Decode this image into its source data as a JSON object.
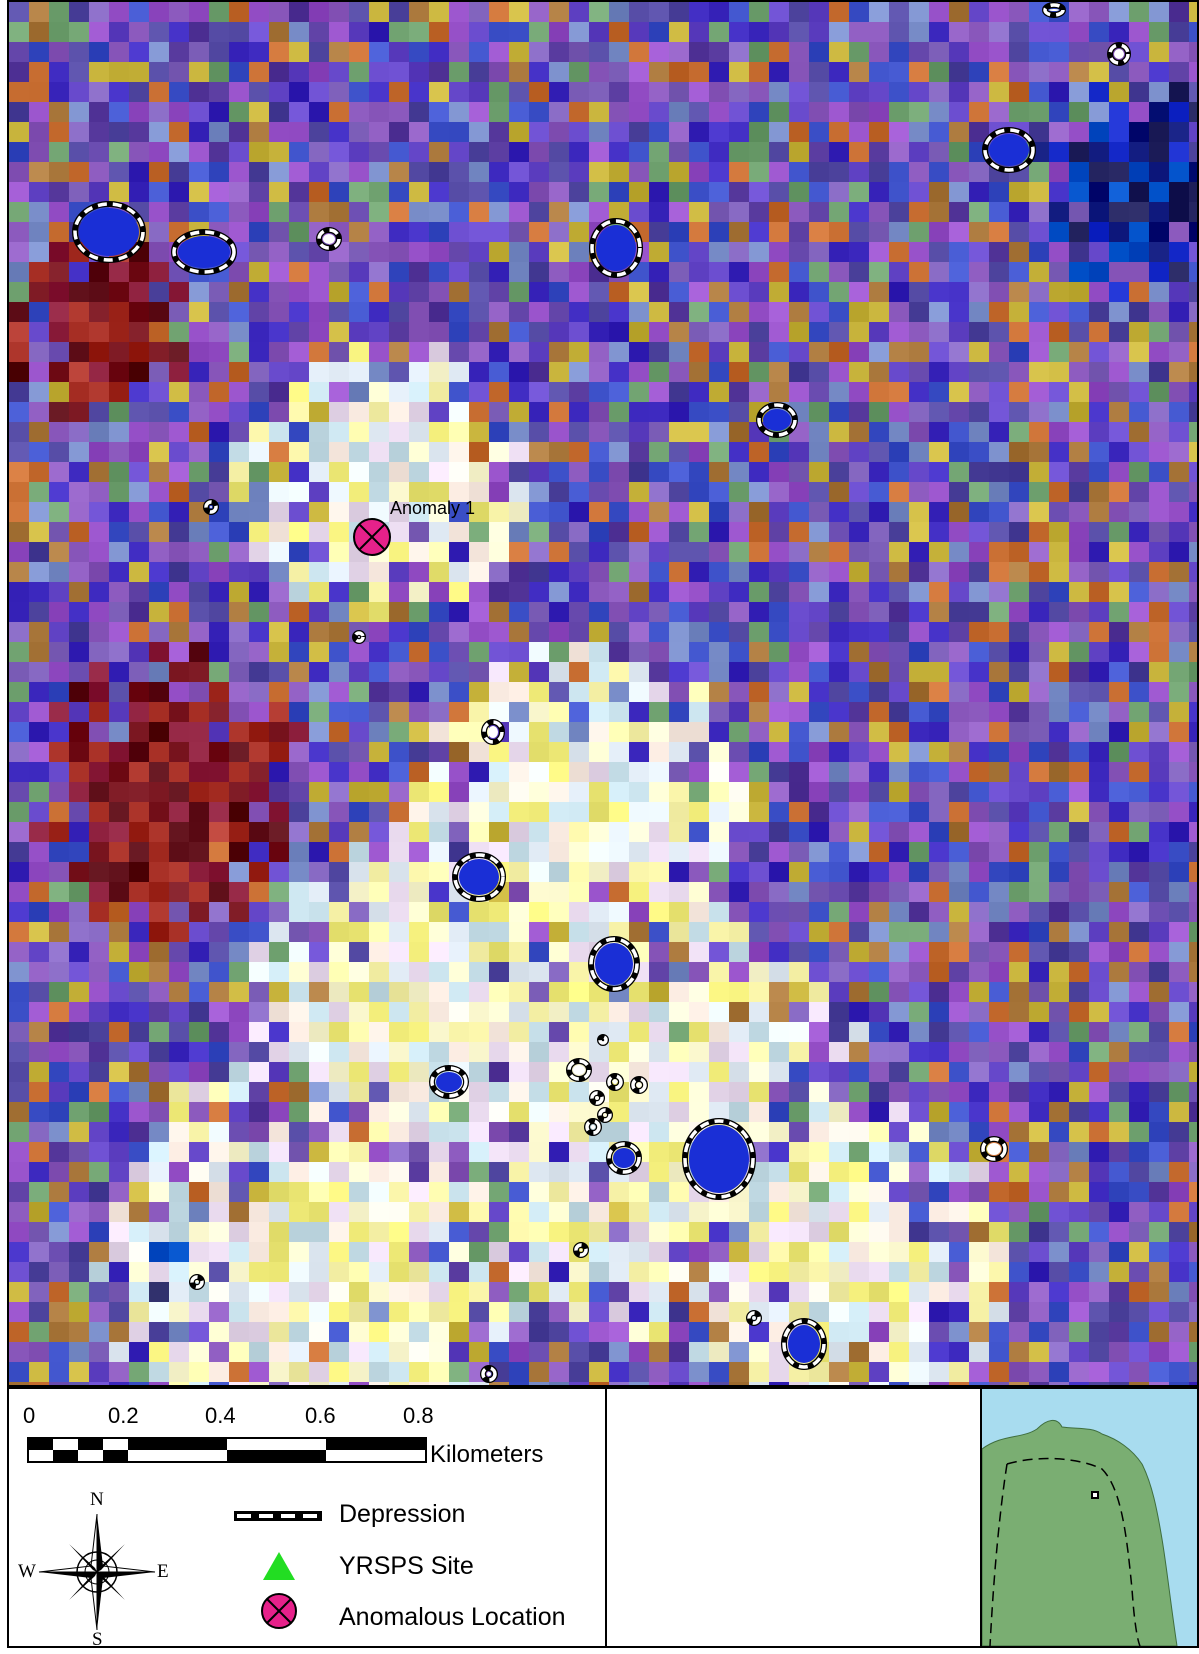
{
  "map": {
    "feature_label": "Anomaly 1",
    "colors": {
      "depression_outline": "#000000",
      "depression_dash": "#ffffff",
      "anomaly_fill": "#e6218a",
      "site_fill": "#22dd22"
    }
  },
  "scale_bar": {
    "ticks": [
      "0",
      "0.2",
      "0.4",
      "0.6",
      "0.8"
    ],
    "units": "Kilometers"
  },
  "compass": {
    "north": "N",
    "south": "S",
    "east": "E",
    "west": "W"
  },
  "legend": {
    "items": [
      {
        "label": "Depression",
        "symbol": "dashed-line-icon"
      },
      {
        "label": "YRSPS Site",
        "symbol": "green-triangle-icon"
      },
      {
        "label": "Anomalous Location",
        "symbol": "pink-x-circle-icon"
      }
    ]
  },
  "inset": {
    "colors": {
      "water": "#a8dcef",
      "land": "#7aae72"
    }
  }
}
